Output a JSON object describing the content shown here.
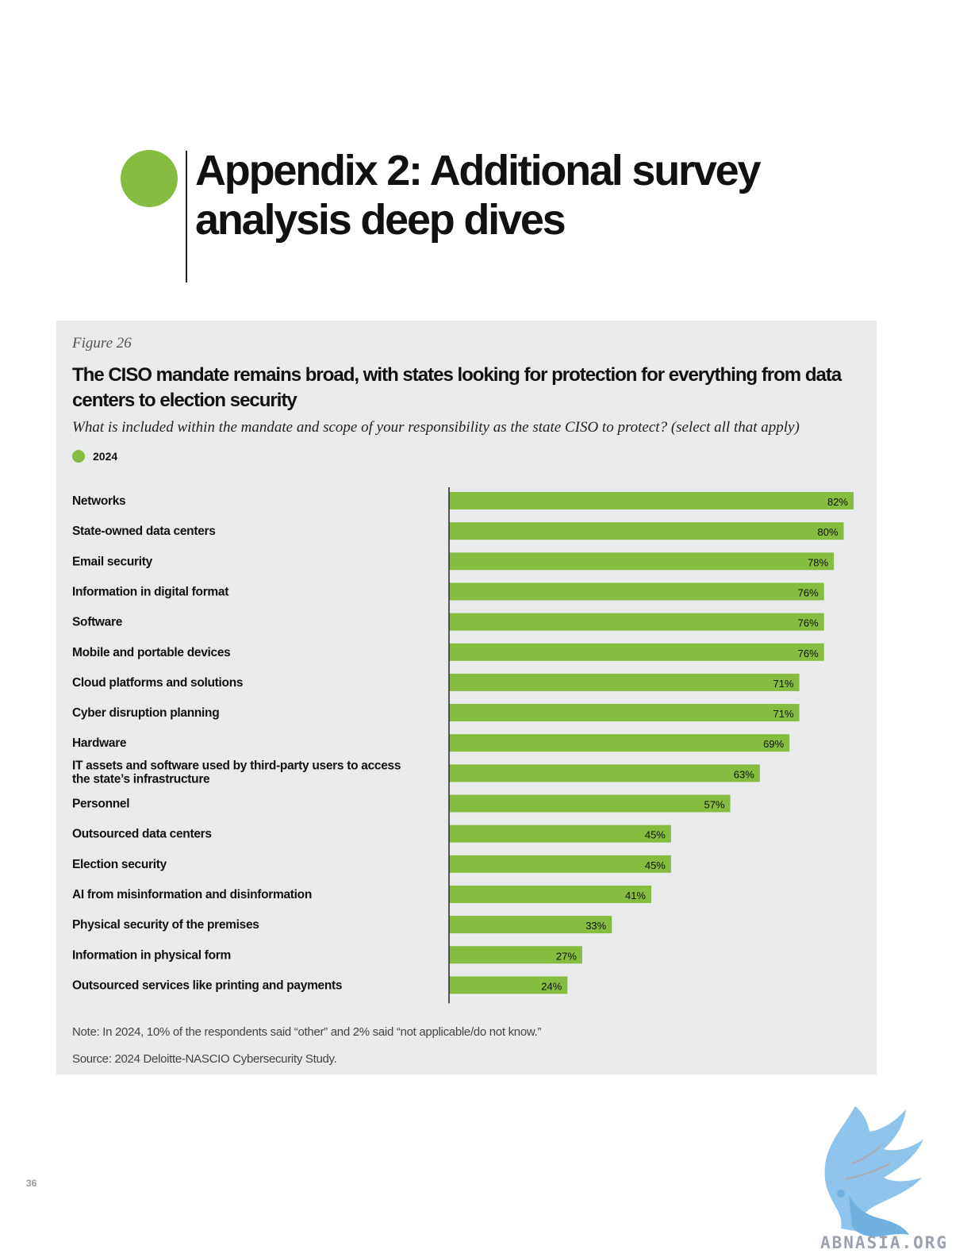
{
  "page": {
    "title_line1": "Appendix 2: Additional survey",
    "title_line2": "analysis deep dives",
    "page_number": "36",
    "watermark": "ABNASIA.ORG"
  },
  "colors": {
    "accent": "#86bc3f",
    "panel": "#e9eaeb"
  },
  "figure": {
    "label": "Figure 26",
    "note": "Note: In 2024, 10% of the respondents said “other” and 2% said “not applicable/do not know.”",
    "source": "Source: 2024 Deloitte-NASCIO Cybersecurity Study."
  },
  "chart_data": {
    "type": "bar",
    "orientation": "horizontal",
    "title": "The CISO mandate remains broad, with states looking for protection for everything from data centers to election security",
    "subtitle": "What is included within the mandate and scope of your responsibility as the state CISO to protect? (select all that apply)",
    "legend": [
      "2024"
    ],
    "categories": [
      "Networks",
      "State-owned data centers",
      "Email security",
      "Information in digital format",
      "Software",
      "Mobile and portable devices",
      "Cloud platforms and solutions",
      "Cyber disruption planning",
      "Hardware",
      "IT assets and software used by third-party users to access the state’s infrastructure",
      "Personnel",
      "Outsourced data centers",
      "Election security",
      "AI from misinformation and disinformation",
      "Physical security of the premises",
      "Information in physical form",
      "Outsourced services like printing and payments"
    ],
    "category_lines": [
      [
        "Networks"
      ],
      [
        "State-owned data centers"
      ],
      [
        "Email security"
      ],
      [
        "Information in digital format"
      ],
      [
        "Software"
      ],
      [
        "Mobile and portable devices"
      ],
      [
        "Cloud platforms and solutions"
      ],
      [
        "Cyber disruption planning"
      ],
      [
        "Hardware"
      ],
      [
        "IT assets and software used by third-party users to access",
        "the state’s infrastructure"
      ],
      [
        "Personnel"
      ],
      [
        "Outsourced data centers"
      ],
      [
        "Election security"
      ],
      [
        "AI from misinformation and disinformation"
      ],
      [
        "Physical security of the premises"
      ],
      [
        "Information in physical form"
      ],
      [
        "Outsourced services like printing and payments"
      ]
    ],
    "series": [
      {
        "name": "2024",
        "color": "#86bc3f",
        "values": [
          82,
          80,
          78,
          76,
          76,
          76,
          71,
          71,
          69,
          63,
          57,
          45,
          45,
          41,
          33,
          27,
          24
        ]
      }
    ],
    "value_labels": [
      "82%",
      "80%",
      "78%",
      "76%",
      "76%",
      "76%",
      "71%",
      "71%",
      "69%",
      "63%",
      "57%",
      "45%",
      "45%",
      "41%",
      "33%",
      "27%",
      "24%"
    ],
    "xlim": [
      0,
      100
    ],
    "grid": false
  }
}
